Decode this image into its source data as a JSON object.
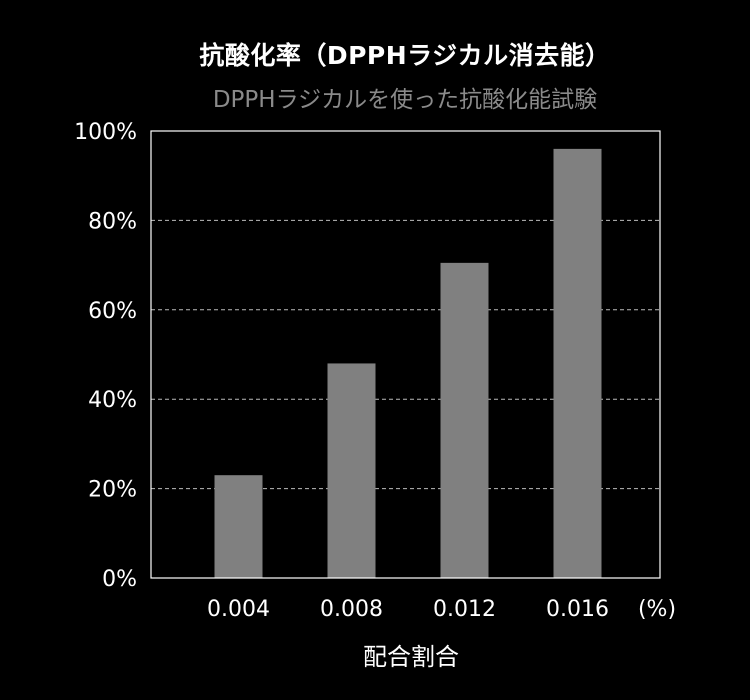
{
  "title": "抗酸化率（DPPHラジカル消去能）",
  "subtitle": "DPPHラジカルを使った抗酸化能試験",
  "chart_data": {
    "type": "bar",
    "categories": [
      "0.004",
      "0.008",
      "0.012",
      "0.016"
    ],
    "values": [
      23,
      48,
      70.5,
      96
    ],
    "xunit": "(%)",
    "xlabel": "配合割合",
    "ylabel": "",
    "ylim": [
      0,
      100
    ],
    "yticks": [
      0,
      20,
      40,
      60,
      80,
      100
    ],
    "ytick_labels": [
      "0%",
      "20%",
      "40%",
      "60%",
      "80%",
      "100%"
    ],
    "grid": "horizontal-dashed",
    "colors": {
      "background": "#000000",
      "bar": "#808080",
      "axis": "#ffffff",
      "grid": "#bbbbbb",
      "title": "#ffffff",
      "subtitle": "#8a8a8a"
    }
  }
}
